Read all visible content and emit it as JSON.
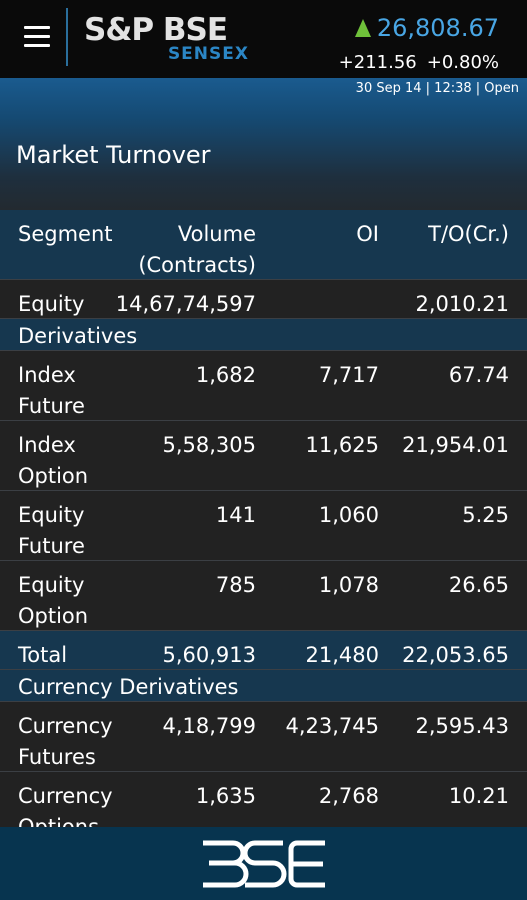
{
  "header": {
    "logo_text": "S&P BSE",
    "logo_sub": "SENSEX",
    "index_value": "26,808.67",
    "change_points": "+211.56",
    "change_percent": "+0.80%",
    "timestamp": "30 Sep 14 | 12:38 | Open"
  },
  "page": {
    "title": "Market Turnover"
  },
  "table": {
    "columns": [
      "Segment",
      "Volume\n(Contracts)",
      "OI",
      "T/O(Cr.)"
    ],
    "rows": [
      {
        "type": "equity",
        "segment": "Equity",
        "volume": "14,67,74,597",
        "oi": "",
        "to": "2,010.21"
      },
      {
        "type": "section",
        "segment": "Derivatives"
      },
      {
        "type": "tall",
        "segment": "Index\nFuture",
        "volume": "1,682",
        "oi": "7,717",
        "to": "67.74"
      },
      {
        "type": "tall",
        "segment": "Index\nOption",
        "volume": "5,58,305",
        "oi": "11,625",
        "to": "21,954.01"
      },
      {
        "type": "tall",
        "segment": "Equity\nFuture",
        "volume": "141",
        "oi": "1,060",
        "to": "5.25"
      },
      {
        "type": "tall",
        "segment": "Equity\nOption",
        "volume": "785",
        "oi": "1,078",
        "to": "26.65"
      },
      {
        "type": "total",
        "segment": "Total",
        "volume": "5,60,913",
        "oi": "21,480",
        "to": "22,053.65"
      },
      {
        "type": "section",
        "segment": "Currency Derivatives"
      },
      {
        "type": "tall",
        "segment": "Currency\nFutures",
        "volume": "4,18,799",
        "oi": "4,23,745",
        "to": "2,595.43"
      },
      {
        "type": "tall",
        "segment": "Currency\nOptions",
        "volume": "1,635",
        "oi": "2,768",
        "to": "10.21"
      }
    ]
  },
  "footer": {
    "logo_text": "BSE"
  },
  "colors": {
    "accent": "#49a6e4",
    "row_highlight": "#16374f",
    "up_arrow": "#6fc13a",
    "footer_bg": "#07344f"
  },
  "icons": {
    "menu": "hamburger-menu-icon",
    "trend": "up-arrow-icon"
  }
}
